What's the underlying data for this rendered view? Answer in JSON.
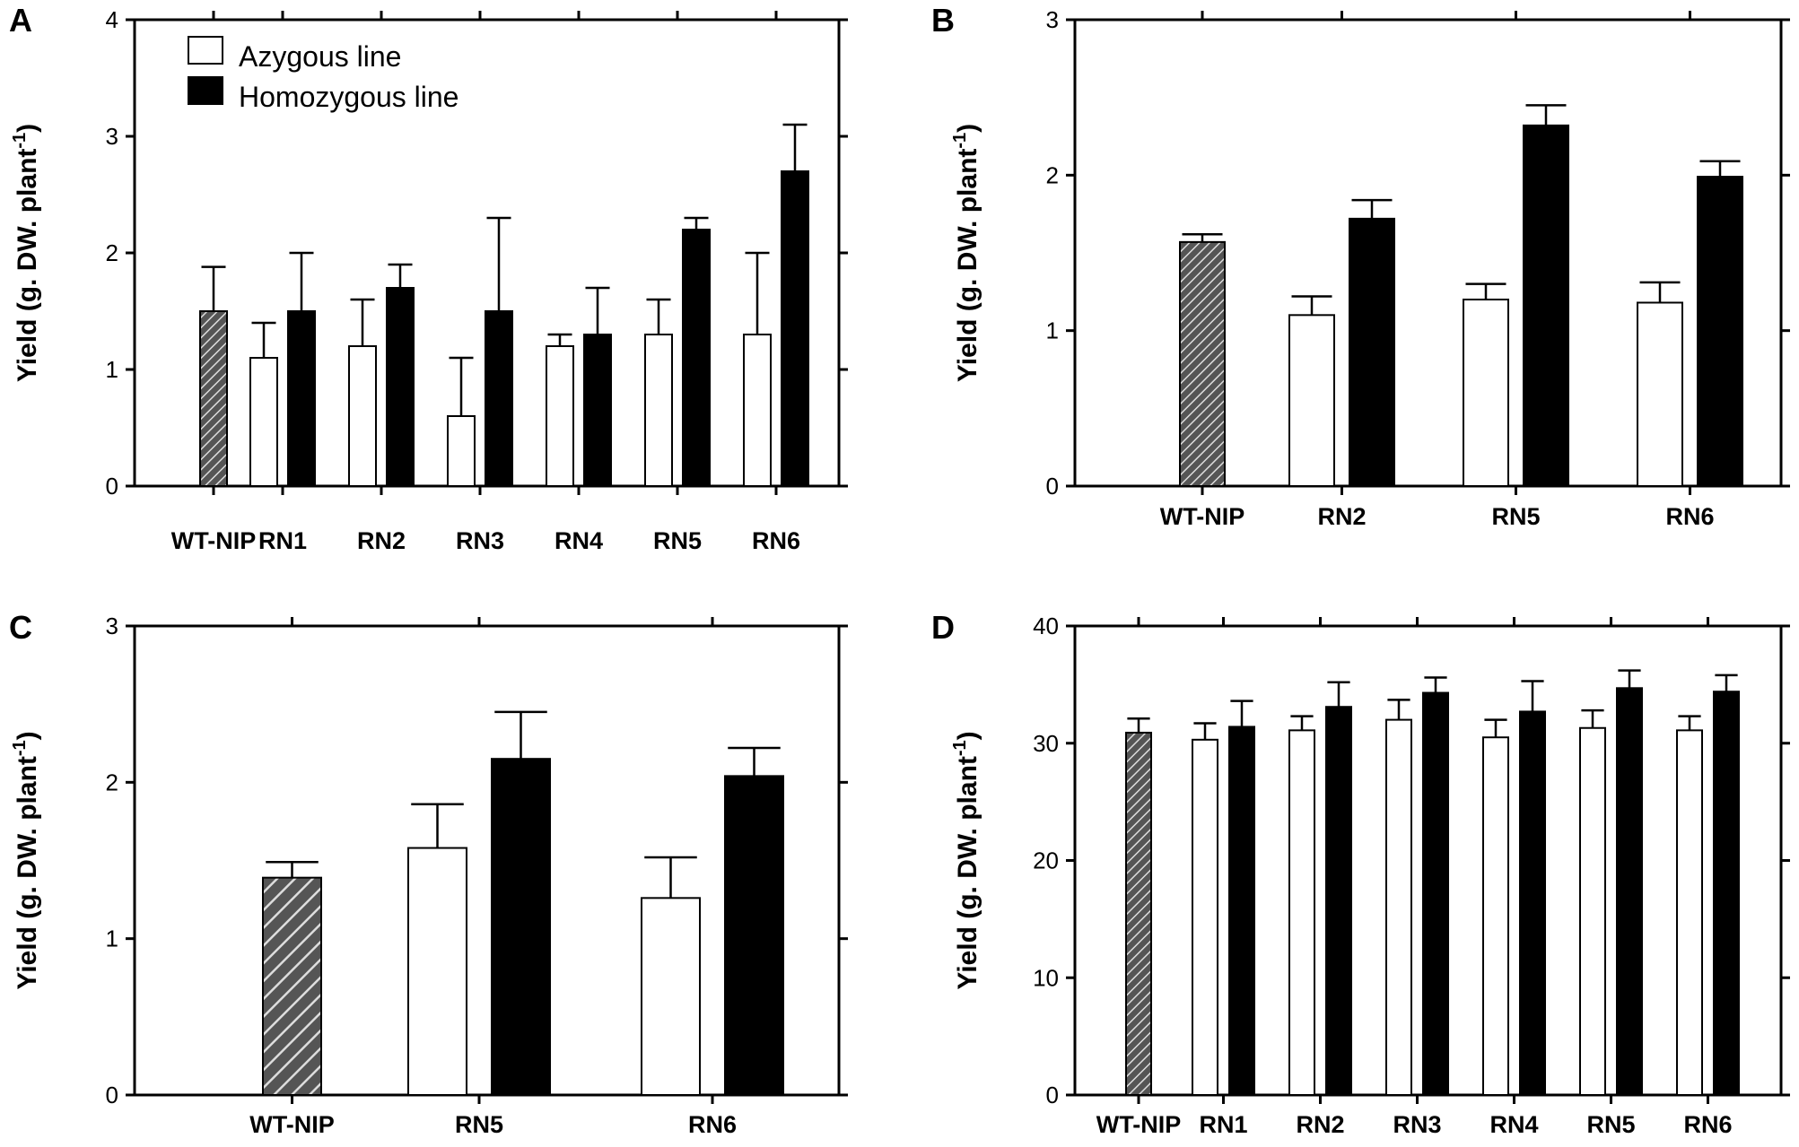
{
  "colors": {
    "azygous": "#ffffff",
    "homozygous": "#000000",
    "wt_hatch_bg": "#555555",
    "wt_hatch_line": "#dddddd"
  },
  "legend": {
    "azygous": "Azygous line",
    "homozygous": "Homozygous line"
  },
  "chart_data": [
    {
      "panel": "A",
      "type": "bar",
      "ylabel_main": "Yield (g. DW. plant",
      "ylabel_sup": "-1",
      "ylabel_close": ")",
      "ylim": [
        0,
        4
      ],
      "yticks": [
        0,
        1,
        2,
        3,
        4
      ],
      "categories": [
        "WT-NIP",
        "RN1",
        "RN2",
        "RN3",
        "RN4",
        "RN5",
        "RN6"
      ],
      "wt": {
        "value": 1.5,
        "error": 0.38
      },
      "series": [
        {
          "name": "Azygous line",
          "values": [
            null,
            1.1,
            1.2,
            0.6,
            1.2,
            1.3,
            1.3
          ],
          "errors": [
            null,
            0.3,
            0.4,
            0.5,
            0.1,
            0.3,
            0.7
          ]
        },
        {
          "name": "Homozygous line",
          "values": [
            null,
            1.5,
            1.7,
            1.5,
            1.3,
            2.2,
            2.7
          ],
          "errors": [
            null,
            0.5,
            0.2,
            0.8,
            0.4,
            0.1,
            0.4
          ]
        }
      ]
    },
    {
      "panel": "B",
      "type": "bar",
      "ylabel_main": "Yield (g. DW. plant",
      "ylabel_sup": "-1",
      "ylabel_close": ")",
      "ylim": [
        0,
        3
      ],
      "yticks": [
        0,
        1,
        2,
        3
      ],
      "categories": [
        "WT-NIP",
        "RN2",
        "RN5",
        "RN6"
      ],
      "wt": {
        "value": 1.57,
        "error": 0.05
      },
      "series": [
        {
          "name": "Azygous line",
          "values": [
            null,
            1.1,
            1.2,
            1.18
          ],
          "errors": [
            null,
            0.12,
            0.1,
            0.13
          ]
        },
        {
          "name": "Homozygous line",
          "values": [
            null,
            1.72,
            2.32,
            1.99
          ],
          "errors": [
            null,
            0.12,
            0.13,
            0.1
          ]
        }
      ]
    },
    {
      "panel": "C",
      "type": "bar",
      "ylabel_main": "Yield (g. DW. plant",
      "ylabel_sup": "-1",
      "ylabel_close": ")",
      "ylim": [
        0,
        3
      ],
      "yticks": [
        0,
        1,
        2,
        3
      ],
      "categories": [
        "WT-NIP",
        "RN5",
        "RN6"
      ],
      "wt": {
        "value": 1.39,
        "error": 0.1
      },
      "series": [
        {
          "name": "Azygous line",
          "values": [
            null,
            1.58,
            1.26
          ],
          "errors": [
            null,
            0.28,
            0.26
          ]
        },
        {
          "name": "Homozygous line",
          "values": [
            null,
            2.15,
            2.04
          ],
          "errors": [
            null,
            0.3,
            0.18
          ]
        }
      ]
    },
    {
      "panel": "D",
      "type": "bar",
      "ylabel_main": "Yield (g. DW. plant",
      "ylabel_sup": "-1",
      "ylabel_close": ")",
      "ylim": [
        0,
        40
      ],
      "yticks": [
        0,
        10,
        20,
        30,
        40
      ],
      "categories": [
        "WT-NIP",
        "RN1",
        "RN2",
        "RN3",
        "RN4",
        "RN5",
        "RN6"
      ],
      "wt": {
        "value": 30.9,
        "error": 1.2
      },
      "series": [
        {
          "name": "Azygous line",
          "values": [
            null,
            30.3,
            31.1,
            32.0,
            30.5,
            31.3,
            31.1
          ],
          "errors": [
            null,
            1.4,
            1.2,
            1.7,
            1.5,
            1.5,
            1.2
          ]
        },
        {
          "name": "Homozygous line",
          "values": [
            null,
            31.4,
            33.1,
            34.3,
            32.7,
            34.7,
            34.4
          ],
          "errors": [
            null,
            2.2,
            2.1,
            1.3,
            2.6,
            1.5,
            1.4
          ]
        }
      ]
    }
  ]
}
